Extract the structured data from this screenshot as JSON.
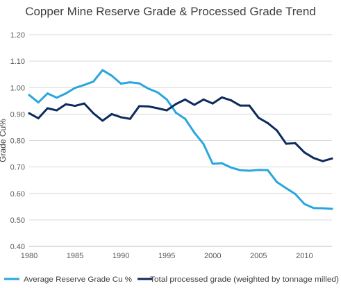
{
  "chart_data": {
    "type": "line",
    "title": "Copper Mine Reserve Grade & Processed Grade Trend",
    "xlabel": "",
    "ylabel": "Grade Cu%",
    "xlim": [
      1980,
      2013
    ],
    "ylim": [
      0.4,
      1.2
    ],
    "x_ticks": [
      "1980",
      "1985",
      "1990",
      "1995",
      "2000",
      "2005",
      "2010"
    ],
    "y_ticks": [
      "0.40",
      "0.50",
      "0.60",
      "0.70",
      "0.80",
      "0.90",
      "1.00",
      "1.10",
      "1.20"
    ],
    "grid": true,
    "legend_position": "bottom",
    "x": [
      1980,
      1981,
      1982,
      1983,
      1984,
      1985,
      1986,
      1987,
      1988,
      1989,
      1990,
      1991,
      1992,
      1993,
      1994,
      1995,
      1996,
      1997,
      1998,
      1999,
      2000,
      2001,
      2002,
      2003,
      2004,
      2005,
      2006,
      2007,
      2008,
      2009,
      2010,
      2011,
      2012,
      2013
    ],
    "series": [
      {
        "name": "Average Reserve Grade Cu %",
        "color": "#2aa6de",
        "values": [
          0.972,
          0.944,
          0.978,
          0.962,
          0.978,
          0.999,
          1.01,
          1.023,
          1.066,
          1.045,
          1.015,
          1.02,
          1.016,
          0.996,
          0.982,
          0.955,
          0.905,
          0.882,
          0.83,
          0.787,
          0.712,
          0.714,
          0.698,
          0.688,
          0.686,
          0.689,
          0.688,
          0.643,
          0.62,
          0.598,
          0.56,
          0.545,
          0.544,
          0.542
        ]
      },
      {
        "name": "Total processed grade (weighted by tonnage milled)",
        "color": "#0d2a5c",
        "values": [
          0.903,
          0.884,
          0.922,
          0.914,
          0.937,
          0.931,
          0.94,
          0.903,
          0.875,
          0.9,
          0.888,
          0.882,
          0.93,
          0.929,
          0.922,
          0.914,
          0.938,
          0.955,
          0.935,
          0.955,
          0.94,
          0.963,
          0.952,
          0.932,
          0.932,
          0.886,
          0.866,
          0.838,
          0.788,
          0.79,
          0.755,
          0.734,
          0.722,
          0.732
        ]
      }
    ]
  }
}
